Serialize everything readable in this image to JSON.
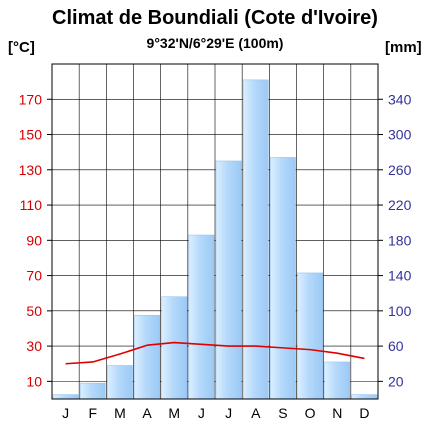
{
  "chart_data": {
    "type": "bar",
    "title": "Climat de Boundiali (Cote d'Ivoire)",
    "subtitle": "9°32'N/6°29'E (100m)",
    "left_axis": {
      "unit": "[°C]",
      "range": [
        0,
        190
      ],
      "ticks": [
        10,
        30,
        50,
        70,
        90,
        110,
        130,
        150,
        170
      ],
      "color": "#d40000"
    },
    "right_axis": {
      "unit": "[mm]",
      "range": [
        0,
        380
      ],
      "ticks": [
        20,
        60,
        100,
        140,
        180,
        220,
        260,
        300,
        340
      ],
      "color": "#333399"
    },
    "categories": [
      "J",
      "F",
      "M",
      "A",
      "M",
      "J",
      "J",
      "A",
      "S",
      "O",
      "N",
      "D"
    ],
    "series": [
      {
        "type": "bar",
        "axis": "right",
        "values": [
          5,
          18,
          38,
          95,
          116,
          186,
          270,
          362,
          274,
          143,
          42,
          5
        ],
        "color": "#bfe0ff"
      },
      {
        "type": "line",
        "axis": "left",
        "values": [
          20,
          21,
          25.5,
          30.5,
          32,
          31,
          30,
          30,
          29,
          28,
          26,
          23
        ],
        "color": "#e00000"
      }
    ],
    "grid": true
  }
}
